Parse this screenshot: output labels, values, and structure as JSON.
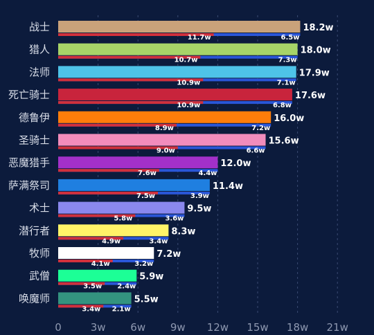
{
  "chart_data": {
    "type": "bar",
    "orientation": "horizontal",
    "categories": [
      "战士",
      "猎人",
      "法师",
      "死亡骑士",
      "德鲁伊",
      "圣骑士",
      "恶魔猎手",
      "萨满祭司",
      "术士",
      "潜行者",
      "牧师",
      "武僧",
      "唤魔师"
    ],
    "series": [
      {
        "values": [
          18.2,
          18.0,
          17.9,
          17.6,
          16.0,
          15.6,
          12.0,
          11.4,
          9.5,
          8.3,
          7.2,
          5.9,
          5.5
        ],
        "labels": [
          "18.2w",
          "18.0w",
          "17.9w",
          "17.6w",
          "16.0w",
          "15.6w",
          "12.0w",
          "11.4w",
          "9.5w",
          "8.3w",
          "7.2w",
          "5.9w",
          "5.5w"
        ],
        "colors": [
          "#c9a27a",
          "#a7d468",
          "#4ec3e8",
          "#c8243c",
          "#ff7d0a",
          "#f28cbc",
          "#a330c9",
          "#1f7fe0",
          "#8a88ee",
          "#fff468",
          "#ffffff",
          "#1cff96",
          "#33937f"
        ]
      },
      {
        "values": [
          11.7,
          10.7,
          10.9,
          10.9,
          8.9,
          9.0,
          7.6,
          7.5,
          5.8,
          4.9,
          4.1,
          3.5,
          3.4
        ],
        "labels": [
          "11.7w",
          "10.7w",
          "10.9w",
          "10.9w",
          "8.9w",
          "9.0w",
          "7.6w",
          "7.5w",
          "5.8w",
          "4.9w",
          "4.1w",
          "3.5w",
          "3.4w"
        ],
        "color": "#d0303c"
      },
      {
        "values": [
          6.5,
          7.3,
          7.1,
          6.8,
          7.2,
          6.6,
          4.4,
          3.9,
          3.6,
          3.4,
          3.2,
          2.4,
          2.1
        ],
        "labels": [
          "6.5w",
          "7.3w",
          "7.1w",
          "6.8w",
          "7.2w",
          "6.6w",
          "4.4w",
          "3.9w",
          "3.6w",
          "3.4w",
          "3.2w",
          "2.4w",
          "2.1w"
        ],
        "color": "#2a56d8"
      }
    ],
    "xticks": [
      "0",
      "3w",
      "6w",
      "9w",
      "12w",
      "15w",
      "18w",
      "21w"
    ],
    "tick_values": [
      0,
      3,
      6,
      9,
      12,
      15,
      18,
      21
    ],
    "xlim": [
      0,
      21
    ],
    "grid": true,
    "background": "#0c1b3c"
  }
}
